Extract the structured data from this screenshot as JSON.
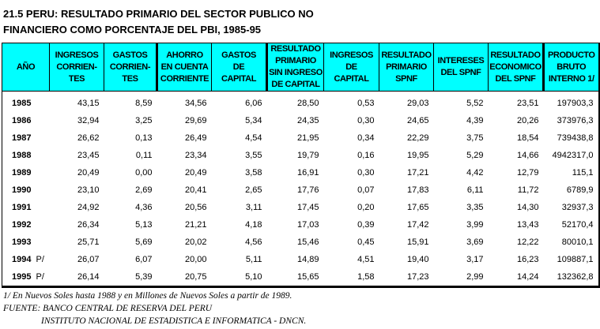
{
  "title": {
    "line1": "21.5  PERU: RESULTADO PRIMARIO DEL SECTOR PUBLICO NO",
    "line2": "FINANCIERO COMO PORCENTAJE DEL PBI, 1985-95"
  },
  "header_color": "#00ffff",
  "columns": [
    [
      "AÑO"
    ],
    [
      "INGRESOS",
      "CORRIEN-",
      "TES"
    ],
    [
      "GASTOS",
      "CORRIEN-",
      "TES"
    ],
    [
      "AHORRO",
      "EN CUENTA",
      "CORRIENTE"
    ],
    [
      "GASTOS",
      "DE",
      "CAPITAL"
    ],
    [
      "RESULTADO",
      "PRIMARIO",
      "SIN INGRESO",
      "DE CAPITAL"
    ],
    [
      "INGRESOS",
      "DE",
      "CAPITAL"
    ],
    [
      "RESULTADO",
      "PRIMARIO",
      "SPNF"
    ],
    [
      "INTERESES",
      "DEL SPNF"
    ],
    [
      "RESULTADO",
      "ECONOMICO",
      "DEL SPNF"
    ],
    [
      "PRODUCTO",
      "BRUTO",
      "INTERNO 1/"
    ]
  ],
  "rows": [
    {
      "year": "1985",
      "flag": "",
      "values": [
        "43,15",
        "8,59",
        "34,56",
        "6,06",
        "28,50",
        "0,53",
        "29,03",
        "5,52",
        "23,51",
        "197903,3"
      ]
    },
    {
      "year": "1986",
      "flag": "",
      "values": [
        "32,94",
        "3,25",
        "29,69",
        "5,34",
        "24,35",
        "0,30",
        "24,65",
        "4,39",
        "20,26",
        "373976,3"
      ]
    },
    {
      "year": "1987",
      "flag": "",
      "values": [
        "26,62",
        "0,13",
        "26,49",
        "4,54",
        "21,95",
        "0,34",
        "22,29",
        "3,75",
        "18,54",
        "739438,8"
      ]
    },
    {
      "year": "1988",
      "flag": "",
      "values": [
        "23,45",
        "0,11",
        "23,34",
        "3,55",
        "19,79",
        "0,16",
        "19,95",
        "5,29",
        "14,66",
        "4942317,0"
      ]
    },
    {
      "year": "1989",
      "flag": "",
      "values": [
        "20,49",
        "0,00",
        "20,49",
        "3,58",
        "16,91",
        "0,30",
        "17,21",
        "4,42",
        "12,79",
        "115,1"
      ]
    },
    {
      "year": "1990",
      "flag": "",
      "values": [
        "23,10",
        "2,69",
        "20,41",
        "2,65",
        "17,76",
        "0,07",
        "17,83",
        "6,11",
        "11,72",
        "6789,9"
      ]
    },
    {
      "year": "1991",
      "flag": "",
      "values": [
        "24,92",
        "4,36",
        "20,56",
        "3,11",
        "17,45",
        "0,20",
        "17,65",
        "3,35",
        "14,30",
        "32937,3"
      ]
    },
    {
      "year": "1992",
      "flag": "",
      "values": [
        "26,34",
        "5,13",
        "21,21",
        "4,18",
        "17,03",
        "0,39",
        "17,42",
        "3,99",
        "13,43",
        "52170,4"
      ]
    },
    {
      "year": "1993",
      "flag": "",
      "values": [
        "25,71",
        "5,69",
        "20,02",
        "4,56",
        "15,46",
        "0,45",
        "15,91",
        "3,69",
        "12,22",
        "80010,1"
      ]
    },
    {
      "year": "1994",
      "flag": "P/",
      "values": [
        "26,07",
        "6,07",
        "20,00",
        "5,11",
        "14,89",
        "4,51",
        "19,40",
        "3,17",
        "16,23",
        "109887,1"
      ]
    },
    {
      "year": "1995",
      "flag": "P/",
      "values": [
        "26,14",
        "5,39",
        "20,75",
        "5,10",
        "15,65",
        "1,58",
        "17,23",
        "2,99",
        "14,24",
        "132362,8"
      ]
    }
  ],
  "notes": {
    "note1": "1/ En Nuevos Soles hasta 1988 y en Millones de Nuevos Soles a partir de 1989.",
    "source1": "FUENTE: BANCO CENTRAL DE RESERVA DEL PERU",
    "source2": "INSTITUTO NACIONAL DE ESTADISTICA E INFORMATICA - DNCN."
  }
}
